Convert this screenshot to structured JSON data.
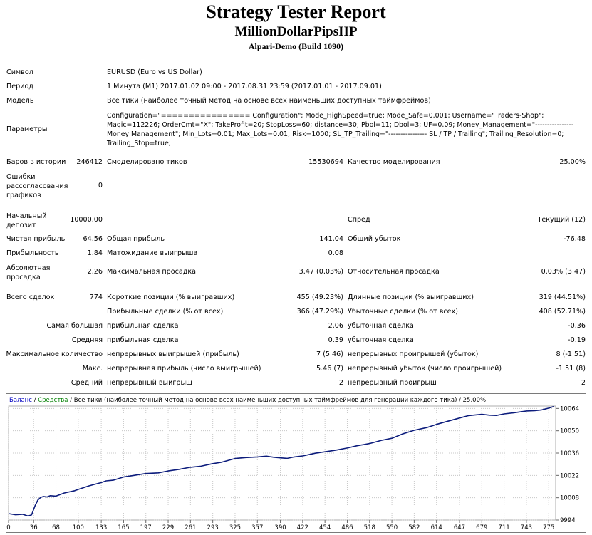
{
  "header": {
    "title": "Strategy Tester Report",
    "expert": "MillionDollarPipsIIP",
    "server": "Alpari-Demo (Build 1090)"
  },
  "info": {
    "symbol_label": "Символ",
    "symbol_value": "EURUSD (Euro vs US Dollar)",
    "period_label": "Период",
    "period_value": "1 Минута (M1) 2017.01.02 09:00 - 2017.08.31 23:59 (2017.01.01 - 2017.09.01)",
    "model_label": "Модель",
    "model_value": "Все тики (наиболее точный метод на основе всех наименьших доступных таймфреймов)",
    "params_label": "Параметры",
    "params_value": "Configuration=\"================ Configuration\"; Mode_HighSpeed=true; Mode_Safe=0.001; Username=\"Traders-Shop\"; Magic=112226; OrderCmt=\"X\"; TakeProfit=20; StopLoss=60; distance=30; Pbol=11; Dbol=3; UF=0.09; Money_Management=\"---------------- Money Management\"; Min_Lots=0.01; Max_Lots=0.01; Risk=1000; SL_TP_Trailing=\"---------------- SL / TP / Trailing\"; Trailing_Resolution=0; Trailing_Stop=true;"
  },
  "stats": {
    "bars_label": "Баров в истории",
    "bars_value": "246412",
    "ticks_label": "Смоделировано тиков",
    "ticks_value": "15530694",
    "quality_label": "Качество моделирования",
    "quality_value": "25.00%",
    "errors_label": "Ошибки рассогласования графиков",
    "errors_value": "0",
    "deposit_label": "Начальный депозит",
    "deposit_value": "10000.00",
    "spread_label": "Спред",
    "spread_value": "Текущий (12)",
    "net_label": "Чистая прибыль",
    "net_value": "64.56",
    "gross_profit_label": "Общая прибыль",
    "gross_profit_value": "141.04",
    "gross_loss_label": "Общий убыток",
    "gross_loss_value": "-76.48",
    "pf_label": "Прибыльность",
    "pf_value": "1.84",
    "exp_label": "Матожидание выигрыша",
    "exp_value": "0.08",
    "abs_dd_label": "Абсолютная просадка",
    "abs_dd_value": "2.26",
    "max_dd_label": "Максимальная просадка",
    "max_dd_value": "3.47 (0.03%)",
    "rel_dd_label": "Относительная просадка",
    "rel_dd_value": "0.03% (3.47)",
    "total_label": "Всего сделок",
    "total_value": "774",
    "short_label": "Короткие позиции (% выигравших)",
    "short_value": "455 (49.23%)",
    "long_label": "Длинные позиции (% выигравших)",
    "long_value": "319 (44.51%)",
    "prof_trades_label": "Прибыльные сделки (% от всех)",
    "prof_trades_value": "366 (47.29%)",
    "loss_trades_label": "Убыточные сделки (% от всех)",
    "loss_trades_value": "408 (52.71%)",
    "largest_label": "Самая большая",
    "largest_prof_label": "прибыльная сделка",
    "largest_prof_value": "2.06",
    "largest_loss_label": "убыточная сделка",
    "largest_loss_value": "-0.36",
    "avg_label": "Средняя",
    "avg_prof_label": "прибыльная сделка",
    "avg_prof_value": "0.39",
    "avg_loss_label": "убыточная сделка",
    "avg_loss_value": "-0.19",
    "maxcons_label": "Максимальное количество",
    "maxcons_wins_label": "непрерывных выигрышей (прибыль)",
    "maxcons_wins_value": "7 (5.46)",
    "maxcons_losses_label": "непрерывных проигрышей (убыток)",
    "maxcons_losses_value": "8 (-1.51)",
    "max_label": "Макс.",
    "max_profit_label": "непрерывная прибыль (число выигрышей)",
    "max_profit_value": "5.46 (7)",
    "max_loss_label": "непрерывный убыток (число проигрышей)",
    "max_loss_value": "-1.51 (8)",
    "avgcons_label": "Средний",
    "avgcons_wins_label": "непрерывный выигрыш",
    "avgcons_wins_value": "2",
    "avgcons_losses_label": "непрерывный проигрыш",
    "avgcons_losses_value": "2"
  },
  "chart_data": {
    "type": "line",
    "title": "",
    "legend": [
      {
        "text": "Баланс",
        "color": "#0000c0"
      },
      {
        "text": " / ",
        "color": "#000000"
      },
      {
        "text": "Средства",
        "color": "#008000"
      },
      {
        "text": " / Все тики (наиболее точный метод на основе всех наименьших доступных таймфреймов для генерации каждого тика) / 25.00%",
        "color": "#000000"
      }
    ],
    "xlabel": "",
    "ylabel": "",
    "x_ticks": [
      0,
      36,
      68,
      100,
      133,
      165,
      197,
      229,
      261,
      293,
      325,
      357,
      390,
      422,
      454,
      486,
      518,
      550,
      582,
      614,
      647,
      679,
      711,
      743,
      775
    ],
    "y_ticks": [
      9994,
      10008,
      10022,
      10036,
      10050,
      10064
    ],
    "xlim": [
      0,
      785
    ],
    "ylim": [
      9994,
      10065.5
    ],
    "grid": true,
    "series": [
      {
        "name": "Баланс",
        "color": "#0c1c7c",
        "x": [
          0,
          10,
          20,
          28,
          33,
          38,
          42,
          46,
          50,
          55,
          60,
          68,
          80,
          95,
          100,
          115,
          133,
          140,
          150,
          165,
          180,
          197,
          215,
          229,
          245,
          261,
          275,
          293,
          305,
          325,
          340,
          357,
          370,
          380,
          390,
          400,
          410,
          422,
          440,
          454,
          470,
          486,
          500,
          518,
          535,
          550,
          565,
          582,
          600,
          614,
          630,
          647,
          660,
          679,
          690,
          700,
          711,
          725,
          743,
          755,
          765,
          775,
          782
        ],
        "y": [
          9998.0,
          9997.3,
          9997.6,
          9996.5,
          9997.2,
          10003.0,
          10006.5,
          10008.2,
          10008.8,
          10008.5,
          10009.3,
          10009.0,
          10011.0,
          10012.4,
          10013.2,
          10015.4,
          10017.5,
          10018.6,
          10019.0,
          10021.0,
          10022.0,
          10023.2,
          10023.6,
          10024.8,
          10025.8,
          10027.1,
          10027.7,
          10029.4,
          10030.2,
          10032.6,
          10033.2,
          10033.6,
          10034.1,
          10033.4,
          10033.0,
          10032.7,
          10033.6,
          10034.2,
          10035.9,
          10036.8,
          10037.9,
          10039.2,
          10040.6,
          10042.0,
          10044.0,
          10045.3,
          10048.0,
          10050.3,
          10052.0,
          10054.0,
          10056.0,
          10058.0,
          10059.5,
          10060.3,
          10059.8,
          10059.6,
          10060.6,
          10061.3,
          10062.4,
          10062.6,
          10063.1,
          10064.2,
          10065.2
        ]
      }
    ]
  }
}
